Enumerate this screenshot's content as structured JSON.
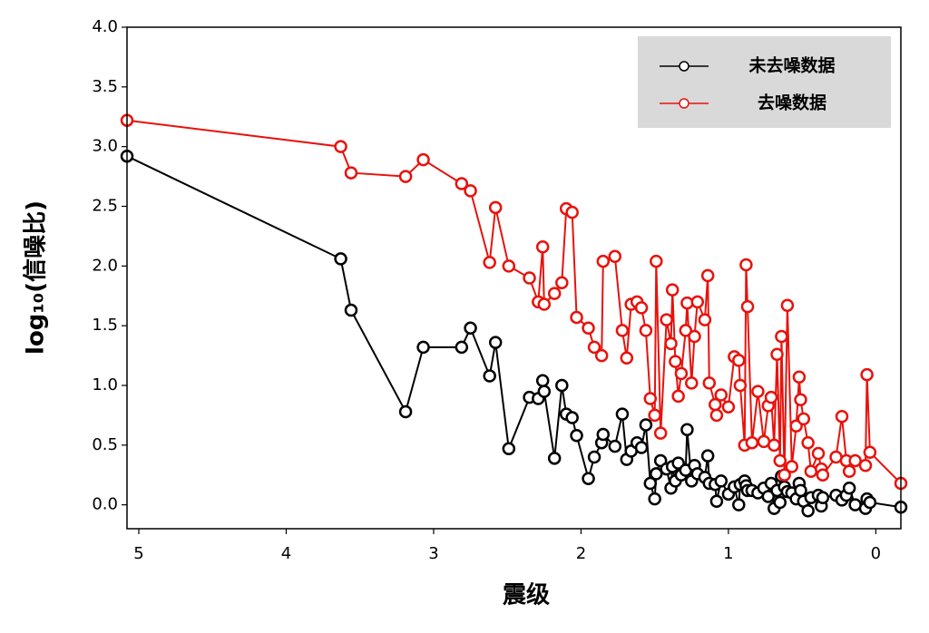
{
  "chart_data": {
    "type": "line",
    "xlabel": "震级",
    "ylabel": "log₁₀(信噪比)",
    "xlim": [
      5.08,
      -0.17
    ],
    "ylim": [
      -0.2,
      4.0
    ],
    "xticks": [
      5,
      4,
      3,
      2,
      1,
      0
    ],
    "yticks": [
      {
        "value": 0,
        "label": "0.0"
      },
      {
        "value": 0.5,
        "label": "0.5"
      },
      {
        "value": 1,
        "label": "1.0"
      },
      {
        "value": 1.5,
        "label": "1.5"
      },
      {
        "value": 2,
        "label": "2.0"
      },
      {
        "value": 2.5,
        "label": "2.5"
      },
      {
        "value": 3,
        "label": "3.0"
      },
      {
        "value": 3.5,
        "label": "3.5"
      },
      {
        "value": 4,
        "label": "4.0"
      }
    ],
    "legend": "upper right",
    "x": [
      5.08,
      3.63,
      3.56,
      3.19,
      3.07,
      2.81,
      2.75,
      2.62,
      2.58,
      2.49,
      2.35,
      2.29,
      2.26,
      2.25,
      2.18,
      2.13,
      2.1,
      2.06,
      2.03,
      1.95,
      1.91,
      1.86,
      1.85,
      1.77,
      1.72,
      1.69,
      1.66,
      1.62,
      1.59,
      1.56,
      1.53,
      1.5,
      1.49,
      1.46,
      1.42,
      1.39,
      1.38,
      1.36,
      1.34,
      1.32,
      1.29,
      1.28,
      1.25,
      1.23,
      1.21,
      1.16,
      1.14,
      1.13,
      1.09,
      1.08,
      1.05,
      1.0,
      0.96,
      0.93,
      0.92,
      0.89,
      0.88,
      0.87,
      0.84,
      0.8,
      0.76,
      0.73,
      0.71,
      0.69,
      0.67,
      0.65,
      0.64,
      0.62,
      0.6,
      0.57,
      0.54,
      0.52,
      0.51,
      0.49,
      0.46,
      0.44,
      0.39,
      0.37,
      0.36,
      0.27,
      0.23,
      0.2,
      0.18,
      0.14,
      0.07,
      0.06,
      0.04,
      -0.17
    ],
    "series": [
      {
        "name": "未去噪数据",
        "color": "#000000",
        "values": [
          2.92,
          2.06,
          1.63,
          0.78,
          1.32,
          1.32,
          1.48,
          1.08,
          1.36,
          0.47,
          0.9,
          0.89,
          1.04,
          0.95,
          0.39,
          1.0,
          0.76,
          0.73,
          0.58,
          0.22,
          0.4,
          0.52,
          0.59,
          0.49,
          0.76,
          0.38,
          0.45,
          0.52,
          0.48,
          0.67,
          0.18,
          0.05,
          0.26,
          0.37,
          0.3,
          0.14,
          0.32,
          0.2,
          0.35,
          0.25,
          0.29,
          0.63,
          0.2,
          0.33,
          0.26,
          0.23,
          0.41,
          0.18,
          0.17,
          0.03,
          0.2,
          0.09,
          0.15,
          0.0,
          0.17,
          0.2,
          0.16,
          0.12,
          0.12,
          0.1,
          0.14,
          0.07,
          0.18,
          -0.03,
          0.12,
          0.02,
          0.24,
          0.15,
          0.11,
          0.1,
          0.05,
          0.18,
          0.12,
          0.03,
          -0.05,
          0.06,
          0.08,
          -0.01,
          0.06,
          0.08,
          0.04,
          0.08,
          0.14,
          0.0,
          -0.03,
          0.05,
          0.02,
          -0.02
        ]
      },
      {
        "name": "去噪数据",
        "color": "#e8120c",
        "values": [
          3.22,
          3.0,
          2.78,
          2.75,
          2.89,
          2.69,
          2.63,
          2.03,
          2.49,
          2.0,
          1.9,
          1.7,
          2.16,
          1.68,
          1.77,
          1.86,
          2.48,
          2.45,
          1.57,
          1.48,
          1.32,
          1.25,
          2.04,
          2.08,
          1.46,
          1.23,
          1.68,
          1.7,
          1.65,
          1.46,
          0.89,
          0.75,
          2.04,
          0.6,
          1.55,
          1.35,
          1.8,
          1.2,
          0.91,
          1.1,
          1.46,
          1.69,
          1.02,
          1.41,
          1.7,
          1.55,
          1.92,
          1.02,
          0.84,
          0.75,
          0.92,
          0.82,
          1.24,
          1.21,
          1.0,
          0.5,
          2.01,
          1.66,
          0.52,
          0.95,
          0.53,
          0.83,
          0.9,
          0.5,
          1.26,
          0.37,
          1.41,
          0.25,
          1.67,
          0.32,
          0.66,
          1.07,
          0.88,
          0.72,
          0.52,
          0.28,
          0.43,
          0.3,
          0.25,
          0.4,
          0.74,
          0.37,
          0.28,
          0.37,
          0.33,
          1.09,
          0.44,
          0.18
        ]
      }
    ]
  }
}
